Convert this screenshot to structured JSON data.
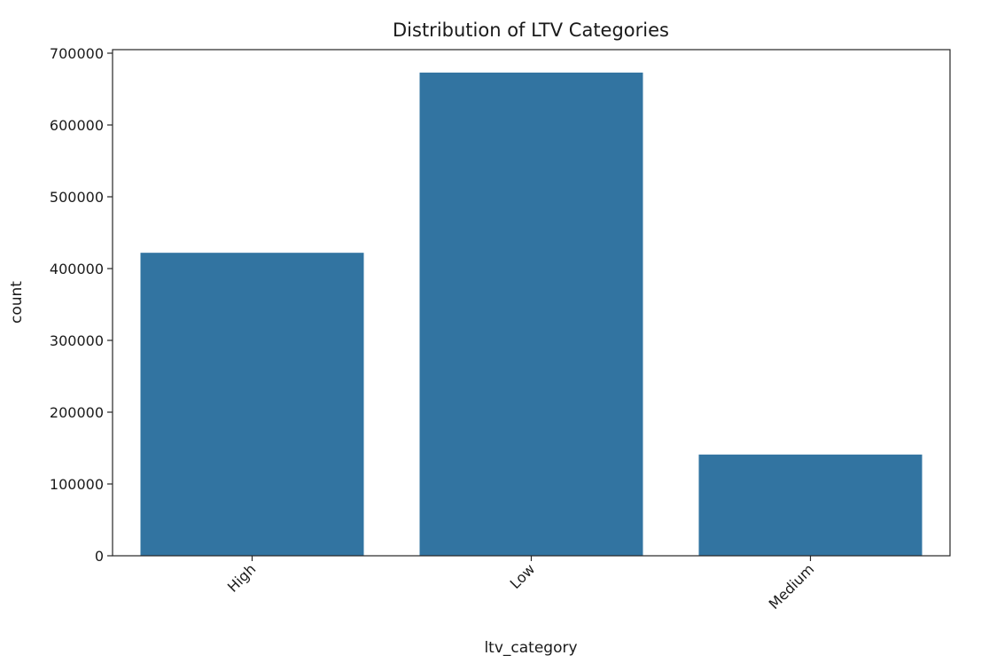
{
  "chart_data": {
    "type": "bar",
    "title": "Distribution of LTV Categories",
    "xlabel": "ltv_category",
    "ylabel": "count",
    "categories": [
      "High",
      "Low",
      "Medium"
    ],
    "values": [
      422000,
      673000,
      141000
    ],
    "ylim": [
      0,
      700000
    ],
    "yticks": [
      0,
      100000,
      200000,
      300000,
      400000,
      500000,
      600000,
      700000
    ],
    "ytick_labels": [
      "0",
      "100000",
      "200000",
      "300000",
      "400000",
      "500000",
      "600000",
      "700000"
    ],
    "bar_color": "#3274a1",
    "grid": false,
    "legend": "none"
  }
}
